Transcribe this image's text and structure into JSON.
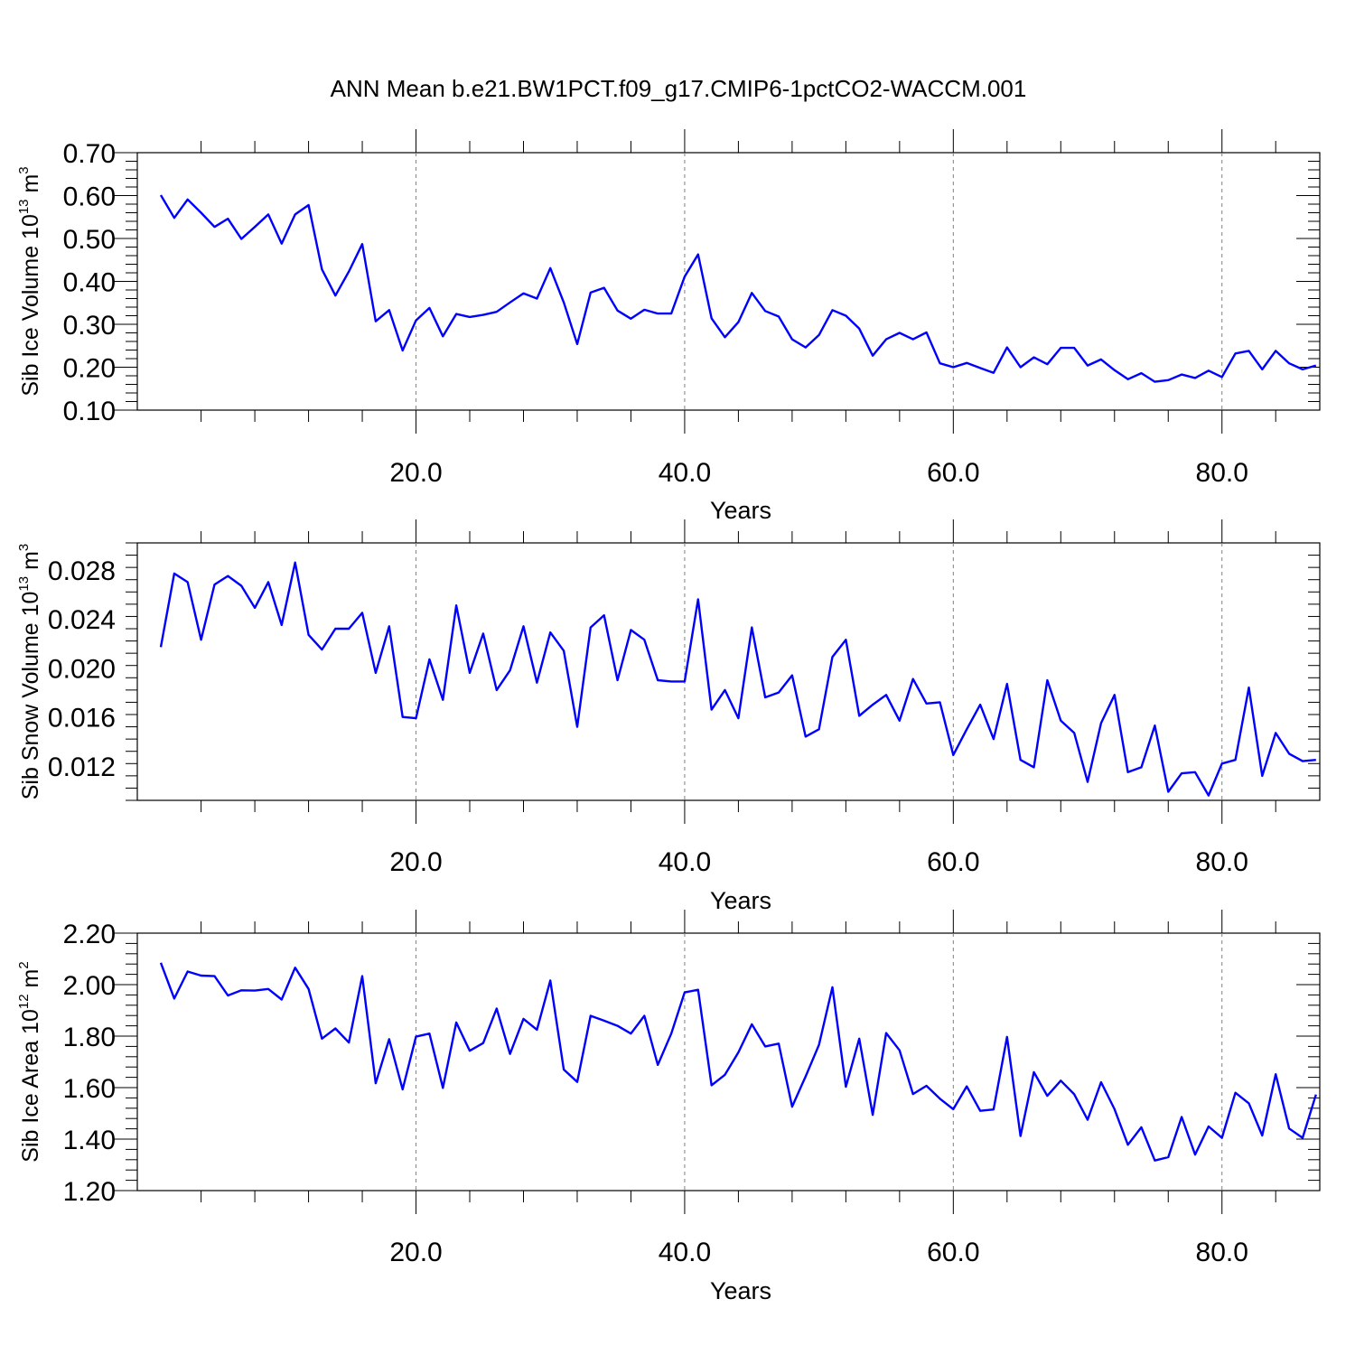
{
  "title": "ANN Mean b.e21.BW1PCT.f09_g17.CMIP6-1pctCO2-WACCM.001",
  "colors": {
    "line": "#0000ff",
    "axis": "#000000",
    "grid": "#808080",
    "background": "#ffffff"
  },
  "chart_data": [
    {
      "type": "line",
      "ylabel": {
        "text": "Sib Ice Volume 10",
        "sup": "13",
        "unit": " m",
        "unit_sup": "3"
      },
      "xlabel": "Years",
      "xlim": [
        1,
        87
      ],
      "ylim": [
        0.1,
        0.7
      ],
      "yticks": [
        0.1,
        0.2,
        0.3,
        0.4,
        0.5,
        0.6,
        0.7
      ],
      "ytick_labels": [
        "0.10",
        "0.20",
        "0.30",
        "0.40",
        "0.50",
        "0.60",
        "0.70"
      ],
      "yminor": 0.02,
      "xticks": [
        20,
        40,
        60,
        80
      ],
      "xtick_labels": [
        "20.0",
        "40.0",
        "60.0",
        "80.0"
      ],
      "xminor": 4,
      "grid_x": true,
      "x": [
        1,
        2,
        3,
        4,
        5,
        6,
        7,
        8,
        9,
        10,
        11,
        12,
        13,
        14,
        15,
        16,
        17,
        18,
        19,
        20,
        21,
        22,
        23,
        24,
        25,
        26,
        27,
        28,
        29,
        30,
        31,
        32,
        33,
        34,
        35,
        36,
        37,
        38,
        39,
        40,
        41,
        42,
        43,
        44,
        45,
        46,
        47,
        48,
        49,
        50,
        51,
        52,
        53,
        54,
        55,
        56,
        57,
        58,
        59,
        60,
        61,
        62,
        63,
        64,
        65,
        66,
        67,
        68,
        69,
        70,
        71,
        72,
        73,
        74,
        75,
        76,
        77,
        78,
        79,
        80,
        81,
        82,
        83,
        84,
        85,
        86,
        87
      ],
      "series": [
        {
          "values": [
            0.601,
            0.548,
            0.591,
            0.56,
            0.527,
            0.546,
            0.499,
            0.527,
            0.556,
            0.488,
            0.556,
            0.578,
            0.428,
            0.367,
            0.423,
            0.487,
            0.307,
            0.333,
            0.239,
            0.309,
            0.338,
            0.272,
            0.324,
            0.317,
            0.322,
            0.329,
            0.351,
            0.372,
            0.36,
            0.431,
            0.351,
            0.254,
            0.374,
            0.385,
            0.332,
            0.313,
            0.334,
            0.325,
            0.325,
            0.411,
            0.463,
            0.314,
            0.27,
            0.305,
            0.373,
            0.331,
            0.318,
            0.265,
            0.246,
            0.275,
            0.333,
            0.32,
            0.29,
            0.227,
            0.265,
            0.28,
            0.265,
            0.281,
            0.209,
            0.2,
            0.21,
            0.198,
            0.187,
            0.246,
            0.2,
            0.223,
            0.207,
            0.245,
            0.245,
            0.204,
            0.218,
            0.193,
            0.172,
            0.186,
            0.166,
            0.17,
            0.183,
            0.175,
            0.192,
            0.177,
            0.232,
            0.238,
            0.195,
            0.238,
            0.209,
            0.195,
            0.204
          ]
        }
      ]
    },
    {
      "type": "line",
      "ylabel": {
        "text": "Sib Snow Volume 10",
        "sup": "13",
        "unit": " m",
        "unit_sup": "3"
      },
      "xlabel": "Years",
      "xlim": [
        1,
        87
      ],
      "ylim": [
        0.0092,
        0.0302
      ],
      "yticks": [
        0.012,
        0.016,
        0.02,
        0.024,
        0.028
      ],
      "ytick_labels": [
        "0.012",
        "0.016",
        "0.020",
        "0.024",
        "0.028"
      ],
      "yminor": 0.001,
      "xticks": [
        20,
        40,
        60,
        80
      ],
      "xtick_labels": [
        "20.0",
        "40.0",
        "60.0",
        "80.0"
      ],
      "xminor": 4,
      "grid_x": true,
      "x": [
        1,
        2,
        3,
        4,
        5,
        6,
        7,
        8,
        9,
        10,
        11,
        12,
        13,
        14,
        15,
        16,
        17,
        18,
        19,
        20,
        21,
        22,
        23,
        24,
        25,
        26,
        27,
        28,
        29,
        30,
        31,
        32,
        33,
        34,
        35,
        36,
        37,
        38,
        39,
        40,
        41,
        42,
        43,
        44,
        45,
        46,
        47,
        48,
        49,
        50,
        51,
        52,
        53,
        54,
        55,
        56,
        57,
        58,
        59,
        60,
        61,
        62,
        63,
        64,
        65,
        66,
        67,
        68,
        69,
        70,
        71,
        72,
        73,
        74,
        75,
        76,
        77,
        78,
        79,
        80,
        81,
        82,
        83,
        84,
        85,
        86,
        87
      ],
      "series": [
        {
          "values": [
            0.0217,
            0.0277,
            0.027,
            0.0223,
            0.0268,
            0.0275,
            0.0267,
            0.0249,
            0.027,
            0.0235,
            0.0286,
            0.0227,
            0.0215,
            0.0232,
            0.0232,
            0.0245,
            0.0196,
            0.0234,
            0.016,
            0.0159,
            0.0207,
            0.0174,
            0.0251,
            0.0196,
            0.0228,
            0.0182,
            0.0198,
            0.0234,
            0.0188,
            0.0229,
            0.0214,
            0.0152,
            0.0233,
            0.0243,
            0.019,
            0.0231,
            0.0223,
            0.019,
            0.0189,
            0.0189,
            0.0256,
            0.0166,
            0.0182,
            0.0159,
            0.0233,
            0.0176,
            0.018,
            0.0194,
            0.0144,
            0.015,
            0.0209,
            0.0223,
            0.0161,
            0.017,
            0.0178,
            0.0157,
            0.0191,
            0.0171,
            0.0172,
            0.0129,
            0.015,
            0.017,
            0.0142,
            0.0187,
            0.0125,
            0.0119,
            0.019,
            0.0157,
            0.0147,
            0.0107,
            0.0155,
            0.0178,
            0.0115,
            0.0119,
            0.0153,
            0.0099,
            0.0114,
            0.0115,
            0.0096,
            0.0122,
            0.0125,
            0.0184,
            0.0112,
            0.0147,
            0.013,
            0.0124,
            0.0125
          ]
        }
      ]
    },
    {
      "type": "line",
      "ylabel": {
        "text": "Sib Ice Area 10",
        "sup": "12",
        "unit": " m",
        "unit_sup": "2"
      },
      "xlabel": "Years",
      "xlim": [
        1,
        87
      ],
      "ylim": [
        1.2,
        2.2
      ],
      "yticks": [
        1.2,
        1.4,
        1.6,
        1.8,
        2.0,
        2.2
      ],
      "ytick_labels": [
        "1.20",
        "1.40",
        "1.60",
        "1.80",
        "2.00",
        "2.20"
      ],
      "yminor": 0.04,
      "xticks": [
        20,
        40,
        60,
        80
      ],
      "xtick_labels": [
        "20.0",
        "40.0",
        "60.0",
        "80.0"
      ],
      "xminor": 4,
      "grid_x": true,
      "x": [
        1,
        2,
        3,
        4,
        5,
        6,
        7,
        8,
        9,
        10,
        11,
        12,
        13,
        14,
        15,
        16,
        17,
        18,
        19,
        20,
        21,
        22,
        23,
        24,
        25,
        26,
        27,
        28,
        29,
        30,
        31,
        32,
        33,
        34,
        35,
        36,
        37,
        38,
        39,
        40,
        41,
        42,
        43,
        44,
        45,
        46,
        47,
        48,
        49,
        50,
        51,
        52,
        53,
        54,
        55,
        56,
        57,
        58,
        59,
        60,
        61,
        62,
        63,
        64,
        65,
        66,
        67,
        68,
        69,
        70,
        71,
        72,
        73,
        74,
        75,
        76,
        77,
        78,
        79,
        80,
        81,
        82,
        83,
        84,
        85,
        86,
        87
      ],
      "series": [
        {
          "values": [
            2.085,
            1.946,
            2.051,
            2.035,
            2.033,
            1.958,
            1.978,
            1.977,
            1.983,
            1.942,
            2.066,
            1.983,
            1.79,
            1.83,
            1.775,
            2.033,
            1.617,
            1.788,
            1.593,
            1.798,
            1.81,
            1.599,
            1.853,
            1.743,
            1.773,
            1.907,
            1.731,
            1.867,
            1.825,
            2.016,
            1.67,
            1.622,
            1.879,
            1.86,
            1.84,
            1.81,
            1.879,
            1.688,
            1.81,
            1.97,
            1.98,
            1.609,
            1.65,
            1.737,
            1.846,
            1.76,
            1.771,
            1.526,
            1.643,
            1.766,
            1.99,
            1.603,
            1.79,
            1.494,
            1.812,
            1.745,
            1.575,
            1.607,
            1.557,
            1.516,
            1.605,
            1.51,
            1.515,
            1.797,
            1.412,
            1.66,
            1.568,
            1.627,
            1.574,
            1.475,
            1.621,
            1.516,
            1.378,
            1.446,
            1.317,
            1.33,
            1.486,
            1.34,
            1.449,
            1.405,
            1.58,
            1.539,
            1.414,
            1.652,
            1.441,
            1.405,
            1.573
          ]
        }
      ]
    }
  ]
}
